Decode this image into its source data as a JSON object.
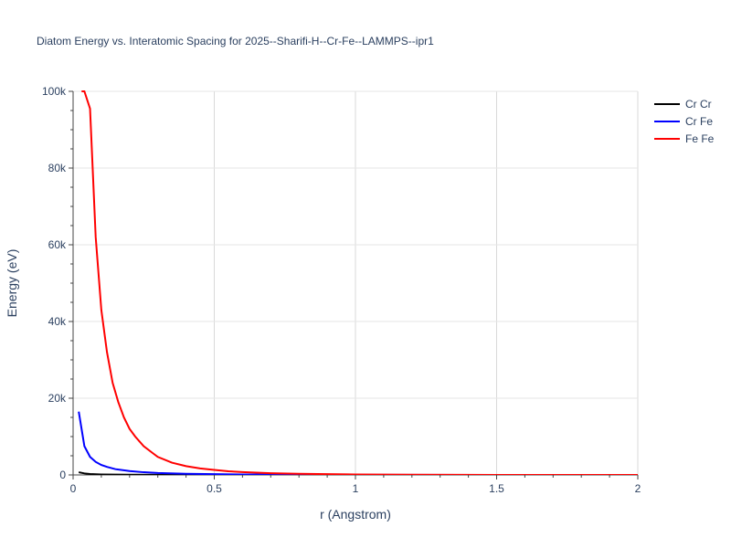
{
  "chart_data": {
    "type": "line",
    "title": "Diatom Energy vs. Interatomic Spacing for 2025--Sharifi-H--Cr-Fe--LAMMPS--ipr1",
    "xlabel": "r (Angstrom)",
    "ylabel": "Energy (eV)",
    "xlim": [
      0,
      2
    ],
    "ylim": [
      0,
      100000
    ],
    "x_ticks": [
      0,
      0.5,
      1,
      1.5,
      2
    ],
    "x_tick_labels": [
      "0",
      "0.5",
      "1",
      "1.5",
      "2"
    ],
    "y_ticks": [
      0,
      20000,
      40000,
      60000,
      80000,
      100000
    ],
    "y_tick_labels": [
      "0",
      "20k",
      "40k",
      "60k",
      "80k",
      "100k"
    ],
    "grid": true,
    "legend_position": "top-right",
    "series": [
      {
        "name": "Cr Cr",
        "color": "#000000",
        "x": [
          0.02,
          0.04,
          0.06,
          0.08,
          0.1,
          0.15,
          0.2,
          0.3,
          0.5,
          1.0,
          2.0
        ],
        "y": [
          700,
          400,
          250,
          180,
          130,
          80,
          50,
          25,
          10,
          0,
          0
        ]
      },
      {
        "name": "Cr Fe",
        "color": "#0000ff",
        "x": [
          0.02,
          0.04,
          0.06,
          0.08,
          0.1,
          0.12,
          0.15,
          0.2,
          0.25,
          0.3,
          0.4,
          0.5,
          0.6,
          0.8,
          1.0,
          1.5,
          2.0
        ],
        "y": [
          16500,
          7500,
          4700,
          3400,
          2600,
          2100,
          1500,
          1000,
          700,
          500,
          300,
          200,
          130,
          60,
          30,
          0,
          0
        ]
      },
      {
        "name": "Fe Fe",
        "color": "#ff0000",
        "x": [
          0.03,
          0.04,
          0.06,
          0.08,
          0.1,
          0.12,
          0.14,
          0.16,
          0.18,
          0.2,
          0.22,
          0.25,
          0.28,
          0.3,
          0.35,
          0.4,
          0.45,
          0.5,
          0.55,
          0.6,
          0.7,
          0.8,
          0.9,
          1.0,
          1.2,
          1.5,
          2.0
        ],
        "y": [
          100000,
          100000,
          95500,
          62000,
          43000,
          32000,
          24000,
          19000,
          15000,
          12000,
          10000,
          7500,
          5800,
          4700,
          3200,
          2300,
          1700,
          1300,
          950,
          750,
          450,
          300,
          200,
          130,
          50,
          10,
          0
        ]
      }
    ]
  }
}
